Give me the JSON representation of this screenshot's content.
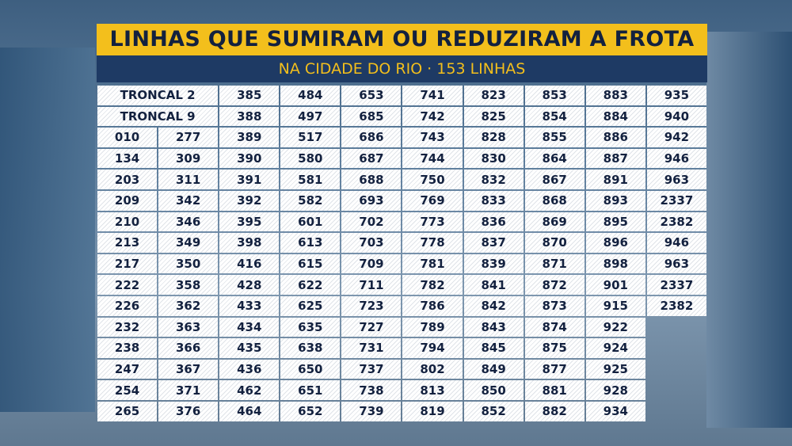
{
  "header": {
    "title": "LINHAS QUE SUMIRAM OU REDUZIRAM A FROTA",
    "subtitle": "NA CIDADE DO RIO · 153 LINHAS"
  },
  "table": {
    "rows": [
      [
        "TRONCAL 2",
        "385",
        "484",
        "653",
        "741",
        "823",
        "853",
        "883",
        "935"
      ],
      [
        "TRONCAL 9",
        "388",
        "497",
        "685",
        "742",
        "825",
        "854",
        "884",
        "940"
      ],
      [
        "010",
        "277",
        "389",
        "517",
        "686",
        "743",
        "828",
        "855",
        "886",
        "942"
      ],
      [
        "134",
        "309",
        "390",
        "580",
        "687",
        "744",
        "830",
        "864",
        "887",
        "946"
      ],
      [
        "203",
        "311",
        "391",
        "581",
        "688",
        "750",
        "832",
        "867",
        "891",
        "963"
      ],
      [
        "209",
        "342",
        "392",
        "582",
        "693",
        "769",
        "833",
        "868",
        "893",
        "2337"
      ],
      [
        "210",
        "346",
        "395",
        "601",
        "702",
        "773",
        "836",
        "869",
        "895",
        "2382"
      ],
      [
        "213",
        "349",
        "398",
        "613",
        "703",
        "778",
        "837",
        "870",
        "896",
        "946"
      ],
      [
        "217",
        "350",
        "416",
        "615",
        "709",
        "781",
        "839",
        "871",
        "898",
        "963"
      ],
      [
        "222",
        "358",
        "428",
        "622",
        "711",
        "782",
        "841",
        "872",
        "901",
        "2337"
      ],
      [
        "226",
        "362",
        "433",
        "625",
        "723",
        "786",
        "842",
        "873",
        "915",
        "2382"
      ],
      [
        "232",
        "363",
        "434",
        "635",
        "727",
        "789",
        "843",
        "874",
        "922"
      ],
      [
        "238",
        "366",
        "435",
        "638",
        "731",
        "794",
        "845",
        "875",
        "924"
      ],
      [
        "247",
        "367",
        "436",
        "650",
        "737",
        "802",
        "849",
        "877",
        "925"
      ],
      [
        "254",
        "371",
        "462",
        "651",
        "738",
        "813",
        "850",
        "881",
        "928"
      ],
      [
        "265",
        "376",
        "464",
        "652",
        "739",
        "819",
        "852",
        "882",
        "934"
      ]
    ]
  }
}
